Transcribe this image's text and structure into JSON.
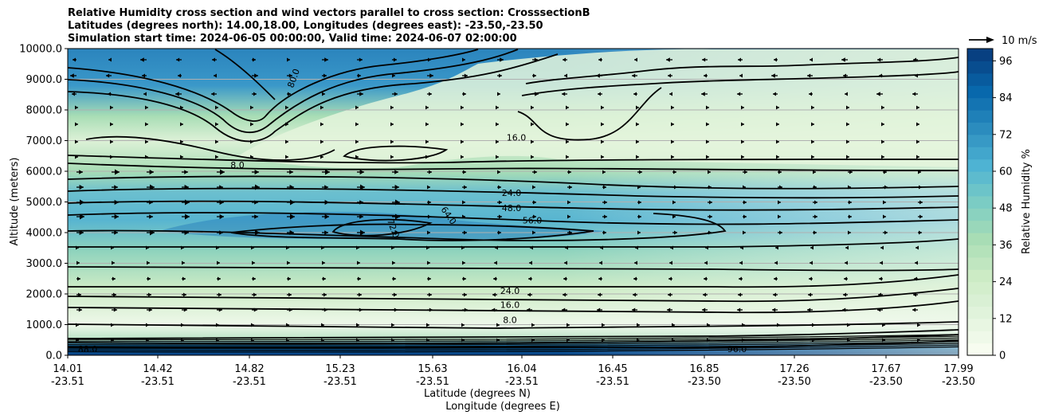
{
  "chart_data": {
    "type": "heatmap",
    "title": [
      "Relative Humidity cross section and wind vectors parallel to cross section: CrosssectionB",
      "Latitudes (degrees north): 14.00,18.00, Longitudes (degrees east): -23.50,-23.50",
      "Simulation start time: 2024-06-05 00:00:00, Valid time: 2024-06-07 02:00:00"
    ],
    "xlabel": "Latitude (degrees N)",
    "xlabel2": "Longitude (degrees E)",
    "ylabel": "Altitude (meters)",
    "ylim": [
      0,
      10000
    ],
    "yticks": [
      "0.0",
      "1000.0",
      "2000.0",
      "3000.0",
      "4000.0",
      "5000.0",
      "6000.0",
      "7000.0",
      "8000.0",
      "9000.0",
      "10000.0"
    ],
    "xticks": [
      {
        "lat": "14.01",
        "lon": "-23.51"
      },
      {
        "lat": "14.42",
        "lon": "-23.51"
      },
      {
        "lat": "14.82",
        "lon": "-23.51"
      },
      {
        "lat": "15.23",
        "lon": "-23.51"
      },
      {
        "lat": "15.63",
        "lon": "-23.51"
      },
      {
        "lat": "16.04",
        "lon": "-23.51"
      },
      {
        "lat": "16.45",
        "lon": "-23.51"
      },
      {
        "lat": "16.85",
        "lon": "-23.50"
      },
      {
        "lat": "17.26",
        "lon": "-23.50"
      },
      {
        "lat": "17.67",
        "lon": "-23.50"
      },
      {
        "lat": "17.99",
        "lon": "-23.50"
      }
    ],
    "grid": "horizontal",
    "colorbar": {
      "label": "Relative Humidity %",
      "ticks": [
        "0",
        "12",
        "24",
        "36",
        "48",
        "60",
        "72",
        "84",
        "96"
      ],
      "range": [
        0,
        100
      ],
      "colormap": [
        "#f7fcf0",
        "#e0f3db",
        "#ccebc5",
        "#a8ddb5",
        "#7bccc4",
        "#4eb3d3",
        "#2b8cbe",
        "#0868ac",
        "#084081"
      ]
    },
    "quiver_key": "10 m/s",
    "contour_levels": [
      {
        "value": 8.0,
        "label": "8.0",
        "altitude": 6100
      },
      {
        "value": 16.0,
        "label": "16.0",
        "altitude": 7000
      },
      {
        "value": 24.0,
        "label": "24.0",
        "altitude": 5200
      },
      {
        "value": 48.0,
        "label": "48.0",
        "altitude": 4700
      },
      {
        "value": 56.0,
        "label": "56.0",
        "altitude": 4300
      },
      {
        "value": 64.0,
        "label": "64.0",
        "altitude": 4500
      },
      {
        "value": 72.0,
        "label": "72.0",
        "altitude": 4100
      },
      {
        "value": 80.0,
        "label": "80.0",
        "altitude": 9000
      },
      {
        "value": 88.0,
        "label": "88.0",
        "altitude": 100
      },
      {
        "value": 96.0,
        "label": "96.0",
        "altitude": 100
      }
    ],
    "contour_labels_low": [
      {
        "label": "24.0",
        "altitude": 2000
      },
      {
        "label": "16.0",
        "altitude": 1550
      },
      {
        "label": "8.0",
        "altitude": 1050
      }
    ]
  }
}
